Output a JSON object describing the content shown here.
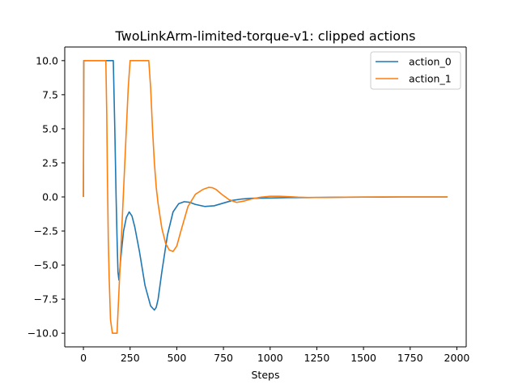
{
  "chart_data": {
    "type": "line",
    "title": "TwoLinkArm-limited-torque-v1: clipped actions",
    "xlabel": "Steps",
    "ylabel": "",
    "xlim": [
      -100,
      2050
    ],
    "ylim": [
      -11,
      11
    ],
    "xticks": [
      0,
      250,
      500,
      750,
      1000,
      1250,
      1500,
      1750,
      2000
    ],
    "xtick_labels": [
      "0",
      "250",
      "500",
      "750",
      "1000",
      "1250",
      "1500",
      "1750",
      "2000"
    ],
    "yticks": [
      -10,
      -7.5,
      -5,
      -2.5,
      0,
      2.5,
      5,
      7.5,
      10
    ],
    "ytick_labels": [
      "−10.0",
      "−7.5",
      "−5.0",
      "−2.5",
      "0.0",
      "2.5",
      "5.0",
      "7.5",
      "10.0"
    ],
    "grid": false,
    "legend_position": "upper-right",
    "series": [
      {
        "name": "action_0",
        "color": "#1f77b4",
        "x": [
          0,
          2,
          5,
          100,
          160,
          168,
          175,
          180,
          185,
          190,
          200,
          215,
          230,
          245,
          260,
          275,
          300,
          330,
          360,
          380,
          390,
          400,
          420,
          450,
          480,
          510,
          540,
          570,
          600,
          650,
          700,
          750,
          800,
          850,
          900,
          1000,
          1100,
          1200,
          1300,
          1400,
          1500,
          1600,
          1700,
          1800,
          1950
        ],
        "y": [
          0,
          10,
          10,
          10,
          10,
          5,
          0,
          -3,
          -5.5,
          -6.1,
          -4.5,
          -2.5,
          -1.5,
          -1.1,
          -1.4,
          -2.2,
          -4,
          -6.5,
          -8,
          -8.3,
          -8.1,
          -7.5,
          -5.5,
          -2.8,
          -1.1,
          -0.5,
          -0.35,
          -0.4,
          -0.55,
          -0.7,
          -0.65,
          -0.45,
          -0.25,
          -0.15,
          -0.1,
          -0.08,
          -0.05,
          -0.05,
          -0.03,
          -0.02,
          -0.01,
          -0.01,
          0,
          0,
          0
        ]
      },
      {
        "name": "action_1",
        "color": "#ff7f0e",
        "x": [
          0,
          2,
          5,
          120,
          125,
          128,
          133,
          138,
          145,
          155,
          165,
          172,
          180,
          200,
          220,
          240,
          250,
          260,
          300,
          340,
          350,
          360,
          370,
          380,
          390,
          400,
          420,
          440,
          460,
          480,
          500,
          520,
          560,
          600,
          640,
          670,
          690,
          710,
          740,
          780,
          820,
          860,
          900,
          950,
          1000,
          1050,
          1100,
          1150,
          1200,
          1300,
          1400,
          1500,
          1600,
          1700,
          1800,
          1950
        ],
        "y": [
          0,
          10,
          10,
          10,
          6,
          2,
          -3,
          -6,
          -9,
          -10,
          -10,
          -10,
          -10,
          -4,
          2,
          8,
          10,
          10,
          10,
          10,
          10,
          8,
          5,
          2.5,
          0.7,
          -0.5,
          -2.3,
          -3.4,
          -3.9,
          -4.0,
          -3.6,
          -2.6,
          -0.7,
          0.2,
          0.55,
          0.7,
          0.68,
          0.55,
          0.2,
          -0.2,
          -0.4,
          -0.3,
          -0.15,
          -0.02,
          0.05,
          0.05,
          0.02,
          -0.02,
          -0.04,
          -0.04,
          -0.02,
          -0.01,
          0,
          0,
          0,
          0
        ]
      }
    ]
  }
}
